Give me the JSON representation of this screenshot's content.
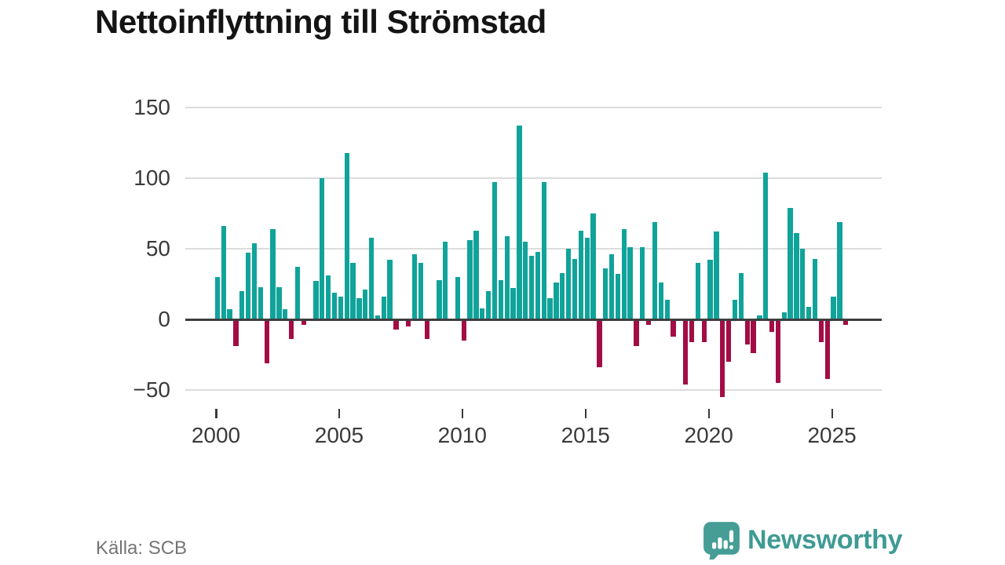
{
  "header": {
    "title": "Nettoinflyttning till Strömstad"
  },
  "footer": {
    "source_label": "Källa: SCB",
    "brand_name": "Newsworthy"
  },
  "colors": {
    "positive": "#10a39a",
    "negative": "#a30d45",
    "brand": "#3e9b94",
    "axis": "#3e3e3e",
    "grid": "#dcdcdc",
    "tick_label": "#3a3a3a",
    "source_text": "#757575",
    "title_text": "#141414"
  },
  "chart_data": {
    "type": "bar",
    "title": "Nettoinflyttning till Strömstad",
    "x_unit": "quarter",
    "start_quarter": "2000-Q1",
    "end_quarter": "2025-Q3",
    "grid": true,
    "legend": false,
    "ylim": [
      -65,
      160
    ],
    "y_ticks": [
      150,
      100,
      50,
      0,
      -50
    ],
    "y_tick_labels": [
      "150",
      "100",
      "50",
      "0",
      "−50"
    ],
    "x_tick_labels": [
      "2000",
      "2005",
      "2010",
      "2015",
      "2020",
      "2025"
    ],
    "x_tick_quarter_indices": [
      0,
      20,
      40,
      60,
      80,
      100
    ],
    "values_per_quarter": [
      30,
      66,
      7,
      -19,
      20,
      47,
      54,
      23,
      -31,
      64,
      23,
      7,
      -14,
      37,
      -4,
      0,
      27,
      100,
      31,
      19,
      16,
      118,
      40,
      15,
      21,
      58,
      3,
      16,
      42,
      -7,
      0,
      -5,
      46,
      40,
      -14,
      0,
      28,
      55,
      0,
      30,
      -15,
      56,
      63,
      8,
      20,
      97,
      28,
      59,
      22,
      137,
      55,
      45,
      48,
      97,
      15,
      26,
      33,
      50,
      43,
      63,
      58,
      75,
      -34,
      36,
      46,
      32,
      64,
      51,
      -19,
      51,
      -4,
      69,
      26,
      14,
      -12,
      0,
      -46,
      -16,
      40,
      -16,
      42,
      62,
      -55,
      -30,
      14,
      33,
      -18,
      -24,
      3,
      104,
      -9,
      -45,
      5,
      79,
      61,
      50,
      9,
      43,
      -16,
      -42,
      16,
      69,
      -4
    ]
  }
}
